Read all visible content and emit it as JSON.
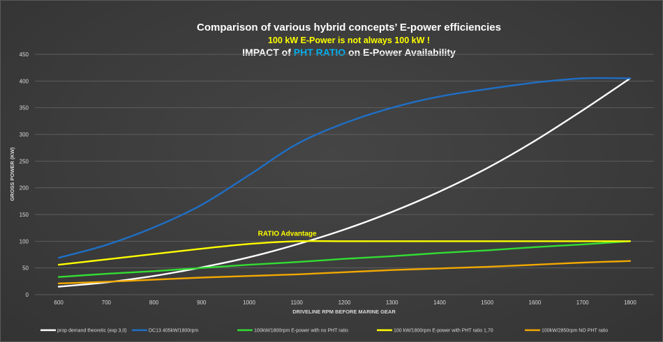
{
  "colors": {
    "background": "#3a3a3a",
    "grid": "#5e5e5e",
    "axis_text": "#d9d9d9",
    "title": "#ffffff",
    "subtitle": "#ffff00",
    "highlight": "#00b0f0",
    "annotation": "#ffff00"
  },
  "chart_data": {
    "type": "line",
    "title_line1": "Comparison of various hybrid concepts’ E-power efficiencies",
    "subtitle": "100 kW E-Power is not always 100 kW !",
    "title_line3_prefix": "IMPACT of ",
    "title_line3_highlight": "PHT RATIO",
    "title_line3_suffix": " on E-Power Availability",
    "xlabel": "DRIVELINE RPM BEFORE MARINE GEAR",
    "ylabel": "GROSS POWER (KW)",
    "x": [
      600,
      700,
      800,
      900,
      1000,
      1100,
      1200,
      1300,
      1400,
      1500,
      1600,
      1700,
      1800
    ],
    "xlim": [
      550,
      1850
    ],
    "ylim": [
      0,
      450
    ],
    "yticks": [
      0,
      50,
      100,
      150,
      200,
      250,
      300,
      350,
      400,
      450
    ],
    "grid": true,
    "legend_position": "bottom",
    "annotation": {
      "text": "RATIO Advantage",
      "x": 1080,
      "y": 110
    },
    "series": [
      {
        "name": "prop demand theoretic (exp 3,0)",
        "color": "#ffffff",
        "values": [
          15,
          23,
          35,
          51,
          70,
          94,
          122,
          155,
          193,
          237,
          288,
          345,
          405
        ]
      },
      {
        "name": "DC13 405kW/1800rpm",
        "color": "#1f6fc5",
        "values": [
          69,
          93,
          126,
          168,
          224,
          282,
          321,
          350,
          371,
          385,
          397,
          405,
          405
        ]
      },
      {
        "name": "100kW/1800rpm E-power with no PHT ratio",
        "color": "#33dd33",
        "values": [
          33,
          39,
          44,
          50,
          56,
          61,
          67,
          72,
          78,
          83,
          89,
          94,
          100
        ]
      },
      {
        "name": "100 kW/1800rpm E-power with PHT ratio 1,70",
        "color": "#ffff00",
        "values": [
          56,
          66,
          76,
          86,
          95,
          100,
          100,
          100,
          100,
          100,
          100,
          100,
          100
        ]
      },
      {
        "name": "100kW/2850rpm NO PHT ratio",
        "color": "#f2a800",
        "values": [
          21,
          24,
          28,
          32,
          35,
          38,
          42,
          46,
          49,
          52,
          56,
          60,
          63
        ]
      }
    ]
  }
}
